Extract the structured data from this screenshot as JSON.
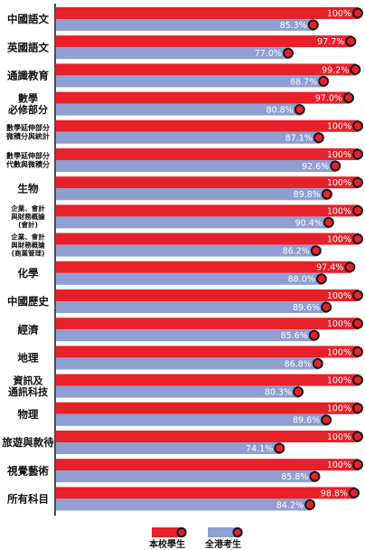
{
  "colors": {
    "school": "#e8202a",
    "hk": "#8f9fd2",
    "marker": "#e8202a",
    "marker_stroke": "#1a1a1a",
    "axis": "#111111"
  },
  "chart_data": {
    "type": "bar",
    "orientation": "horizontal",
    "xlim": [
      0,
      100
    ],
    "legend_position": "bottom",
    "categories": [
      [
        "中國語文"
      ],
      [
        "英國語文"
      ],
      [
        "通識教育"
      ],
      [
        "數學",
        "必修部分"
      ],
      [
        "數學延伸部分",
        "微積分與統計"
      ],
      [
        "數學延伸部分",
        "代數與微積分"
      ],
      [
        "生物"
      ],
      [
        "企業、會計",
        "與財務概論",
        "(會計)"
      ],
      [
        "企業、會計",
        "與財務概論",
        "(商業管理)"
      ],
      [
        "化學"
      ],
      [
        "中國歷史"
      ],
      [
        "經濟"
      ],
      [
        "地理"
      ],
      [
        "資訊及",
        "通訊科技"
      ],
      [
        "物理"
      ],
      [
        "旅遊與款待"
      ],
      [
        "視覺藝術"
      ],
      [
        "所有科目"
      ]
    ],
    "series": [
      {
        "name": "本校學生",
        "values": [
          100,
          97.7,
          99.2,
          97.0,
          100,
          100,
          100,
          100,
          100,
          97.4,
          100,
          100,
          100,
          100,
          100,
          100,
          100,
          98.8
        ],
        "labels": [
          "100%",
          "97.7%",
          "99.2%",
          "97.0%",
          "100%",
          "100%",
          "100%",
          "100%",
          "100%",
          "97.4%",
          "100%",
          "100%",
          "100%",
          "100%",
          "100%",
          "100%",
          "100%",
          "98.8%"
        ]
      },
      {
        "name": "全港考生",
        "values": [
          85.3,
          77.0,
          88.7,
          80.8,
          87.1,
          92.6,
          89.8,
          90.4,
          86.2,
          88.0,
          89.6,
          85.6,
          86.8,
          80.3,
          89.6,
          74.1,
          85.8,
          84.2
        ],
        "labels": [
          "85.3%",
          "77.0%",
          "88.7%",
          "80.8%",
          "87.1%",
          "92.6%",
          "89.8%",
          "90.4%",
          "86.2%",
          "88.0%",
          "89.6%",
          "85.6%",
          "86.8%",
          "80.3%",
          "89.6%",
          "74.1%",
          "85.8%",
          "84.2%"
        ]
      }
    ]
  }
}
